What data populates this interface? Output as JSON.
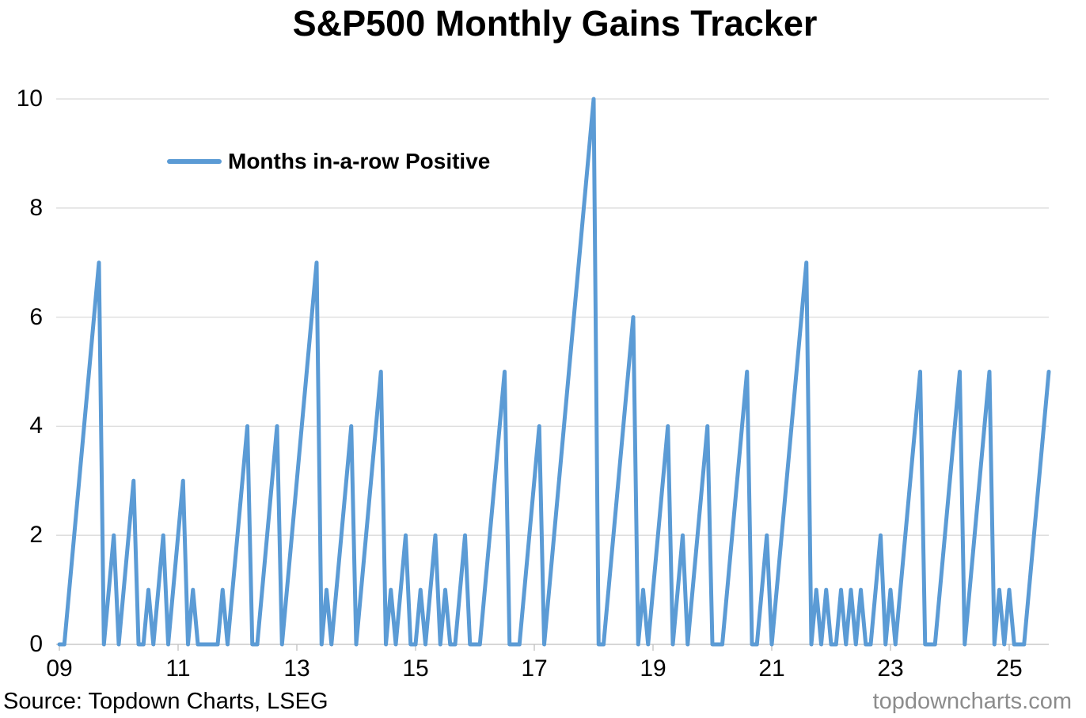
{
  "title": "S&P500 Monthly Gains Tracker",
  "legend": {
    "label": "Months in-a-row Positive"
  },
  "footer": {
    "source": "Source: Topdown Charts, LSEG",
    "watermark": "topdowncharts.com"
  },
  "colors": {
    "line": "#5B9BD5",
    "gridline": "#D9D9D9",
    "axis_line": "#BFBFBF",
    "text": "#000000",
    "watermark_text": "#8C8C8C"
  },
  "chart_data": {
    "type": "line",
    "title": "S&P500 Monthly Gains Tracker",
    "xlabel": "",
    "ylabel": "",
    "x_frequency": "monthly",
    "x_start": "2009-01",
    "x_end": "2025-09",
    "x_tick_labels": [
      "09",
      "11",
      "13",
      "15",
      "17",
      "19",
      "21",
      "23",
      "25"
    ],
    "x_tick_positions_months": [
      0,
      24,
      48,
      72,
      96,
      120,
      144,
      168,
      192
    ],
    "y_ticks": [
      0,
      2,
      4,
      6,
      8,
      10
    ],
    "ylim": [
      0,
      10
    ],
    "grid": "horizontal",
    "legend_position": "inside-top-left",
    "series": [
      {
        "name": "Months in-a-row Positive",
        "color": "#5B9BD5",
        "values_by_year": [
          {
            "year": 2009,
            "values": [
              0,
              0,
              1,
              2,
              3,
              4,
              5,
              6,
              7,
              0,
              1,
              2
            ]
          },
          {
            "year": 2010,
            "values": [
              0,
              1,
              2,
              3,
              0,
              0,
              1,
              0,
              1,
              2,
              0,
              1
            ]
          },
          {
            "year": 2011,
            "values": [
              2,
              3,
              0,
              1,
              0,
              0,
              0,
              0,
              0,
              1,
              0,
              1
            ]
          },
          {
            "year": 2012,
            "values": [
              2,
              3,
              4,
              0,
              0,
              1,
              2,
              3,
              4,
              0,
              1,
              2
            ]
          },
          {
            "year": 2013,
            "values": [
              3,
              4,
              5,
              6,
              7,
              0,
              1,
              0,
              1,
              2,
              3,
              4
            ]
          },
          {
            "year": 2014,
            "values": [
              0,
              1,
              2,
              3,
              4,
              5,
              0,
              1,
              0,
              1,
              2,
              0
            ]
          },
          {
            "year": 2015,
            "values": [
              0,
              1,
              0,
              1,
              2,
              0,
              1,
              0,
              0,
              1,
              2,
              0
            ]
          },
          {
            "year": 2016,
            "values": [
              0,
              0,
              1,
              2,
              3,
              4,
              5,
              0,
              0,
              0,
              1,
              2
            ]
          },
          {
            "year": 2017,
            "values": [
              3,
              4,
              0,
              1,
              2,
              3,
              4,
              5,
              6,
              7,
              8,
              9
            ]
          },
          {
            "year": 2018,
            "values": [
              10,
              0,
              0,
              1,
              2,
              3,
              4,
              5,
              6,
              0,
              1,
              0
            ]
          },
          {
            "year": 2019,
            "values": [
              1,
              2,
              3,
              4,
              0,
              1,
              2,
              0,
              1,
              2,
              3,
              4
            ]
          },
          {
            "year": 2020,
            "values": [
              0,
              0,
              0,
              1,
              2,
              3,
              4,
              5,
              0,
              0,
              1,
              2
            ]
          },
          {
            "year": 2021,
            "values": [
              0,
              1,
              2,
              3,
              4,
              5,
              6,
              7,
              0,
              1,
              0,
              1
            ]
          },
          {
            "year": 2022,
            "values": [
              0,
              0,
              1,
              0,
              1,
              0,
              1,
              0,
              0,
              1,
              2,
              0
            ]
          },
          {
            "year": 2023,
            "values": [
              1,
              0,
              1,
              2,
              3,
              4,
              5,
              0,
              0,
              0,
              1,
              2
            ]
          },
          {
            "year": 2024,
            "values": [
              3,
              4,
              5,
              0,
              1,
              2,
              3,
              4,
              5,
              0,
              1,
              0
            ]
          },
          {
            "year": 2025,
            "values": [
              1,
              0,
              0,
              0,
              1,
              2,
              3,
              4,
              5
            ]
          }
        ]
      }
    ]
  }
}
